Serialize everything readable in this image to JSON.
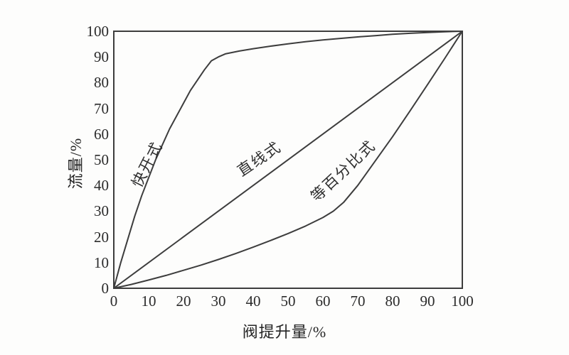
{
  "figure": {
    "background": "#fdfdfc",
    "line_color": "#3d3d3d",
    "text_color": "#262626"
  },
  "chart_data": {
    "type": "line",
    "title": "",
    "xlabel": "阀提升量/%",
    "ylabel": "流量/%",
    "xlim": [
      0,
      100
    ],
    "ylim": [
      0,
      100
    ],
    "x_ticks": [
      0,
      10,
      20,
      30,
      40,
      50,
      60,
      70,
      80,
      90,
      100
    ],
    "y_ticks": [
      0,
      10,
      20,
      30,
      40,
      50,
      60,
      70,
      80,
      90,
      100
    ],
    "grid": false,
    "legend_position": "labels-on-curves",
    "frame": "full-box",
    "series": [
      {
        "id": "quick-opening",
        "name": "快开式",
        "points": [
          [
            0,
            0
          ],
          [
            2,
            10
          ],
          [
            4,
            19
          ],
          [
            6,
            28
          ],
          [
            8,
            36
          ],
          [
            10,
            43
          ],
          [
            12,
            50
          ],
          [
            14,
            56
          ],
          [
            16,
            62
          ],
          [
            18,
            67
          ],
          [
            20,
            72
          ],
          [
            22,
            77
          ],
          [
            24,
            81
          ],
          [
            26,
            85
          ],
          [
            28,
            88.5
          ],
          [
            30,
            90
          ],
          [
            32,
            91.2
          ],
          [
            36,
            92.3
          ],
          [
            40,
            93.2
          ],
          [
            45,
            94.2
          ],
          [
            50,
            95.1
          ],
          [
            55,
            95.9
          ],
          [
            60,
            96.6
          ],
          [
            65,
            97.2
          ],
          [
            70,
            97.8
          ],
          [
            75,
            98.3
          ],
          [
            80,
            98.8
          ],
          [
            85,
            99.2
          ],
          [
            90,
            99.5
          ],
          [
            95,
            99.8
          ],
          [
            100,
            100
          ]
        ],
        "label": {
          "x": 206,
          "y": 231,
          "angle": -63
        }
      },
      {
        "id": "linear",
        "name": "直线式",
        "points": [
          [
            0,
            0
          ],
          [
            100,
            100
          ]
        ],
        "label": {
          "x": 364,
          "y": 223,
          "angle": -34
        }
      },
      {
        "id": "equal-percentage",
        "name": "等百分比式",
        "points": [
          [
            0,
            0
          ],
          [
            5,
            1.5
          ],
          [
            10,
            3.2
          ],
          [
            15,
            5
          ],
          [
            20,
            7
          ],
          [
            25,
            9
          ],
          [
            30,
            11.2
          ],
          [
            35,
            13.5
          ],
          [
            40,
            16
          ],
          [
            45,
            18.6
          ],
          [
            50,
            21.3
          ],
          [
            55,
            24.2
          ],
          [
            60,
            27.5
          ],
          [
            63,
            30
          ],
          [
            66,
            33.5
          ],
          [
            70,
            40
          ],
          [
            75,
            49.5
          ],
          [
            80,
            59
          ],
          [
            85,
            69
          ],
          [
            90,
            79.2
          ],
          [
            95,
            89.5
          ],
          [
            100,
            100
          ]
        ],
        "label": {
          "x": 482,
          "y": 240,
          "angle": -43
        }
      }
    ]
  }
}
